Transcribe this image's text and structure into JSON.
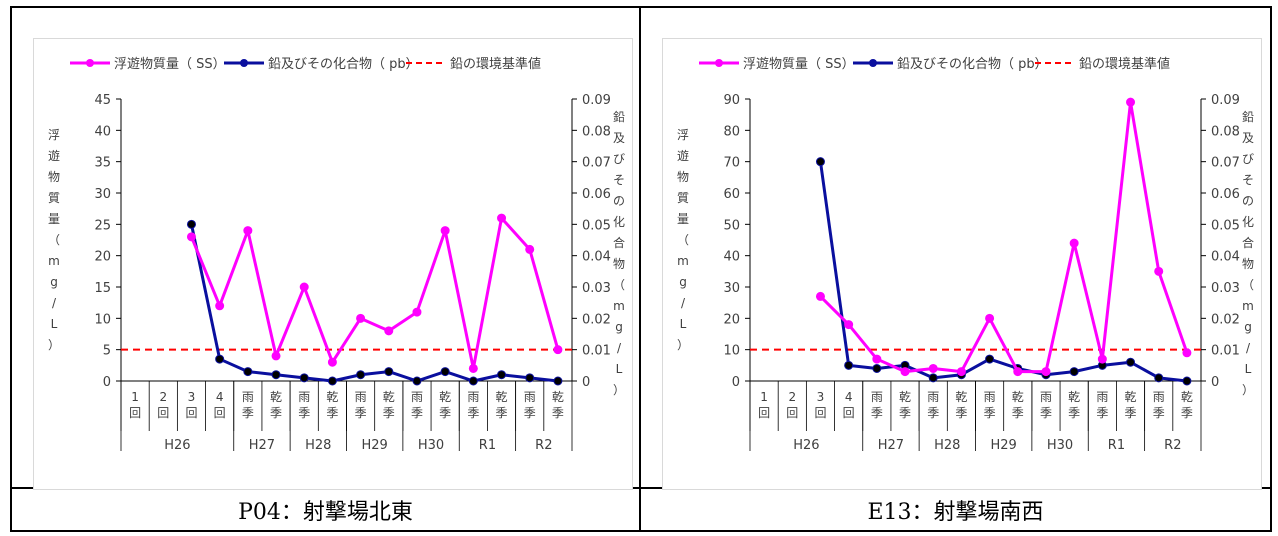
{
  "chart_data": [
    {
      "type": "line",
      "caption": "P04：射撃場北東",
      "legend": [
        "浮遊物質量（ SS）",
        "鉛及びその化合物（ pb）",
        "鉛の環境基準値"
      ],
      "left_axis_label": "浮遊物質量（mg/L）",
      "right_axis_label": "鉛及びその化合物（mg/L）",
      "left_ylim": [
        0,
        45
      ],
      "left_ticks": [
        "0",
        "5",
        "10",
        "15",
        "20",
        "25",
        "30",
        "35",
        "40",
        "45"
      ],
      "right_ylim": [
        0,
        0.09
      ],
      "right_ticks": [
        "0",
        "0.01",
        "0.02",
        "0.03",
        "0.04",
        "0.05",
        "0.06",
        "0.07",
        "0.08",
        "0.09"
      ],
      "categories": [
        "1回",
        "2回",
        "3回",
        "4回",
        "雨季",
        "乾季",
        "雨季",
        "乾季",
        "雨季",
        "乾季",
        "雨季",
        "乾季",
        "雨季",
        "乾季",
        "雨季",
        "乾季"
      ],
      "groups": [
        {
          "label": "H26",
          "count": 4
        },
        {
          "label": "H27",
          "count": 2
        },
        {
          "label": "H28",
          "count": 2
        },
        {
          "label": "H29",
          "count": 2
        },
        {
          "label": "H30",
          "count": 2
        },
        {
          "label": "R1",
          "count": 2
        },
        {
          "label": "R2",
          "count": 2
        }
      ],
      "series": [
        {
          "name": "浮遊物質量（ SS）",
          "color": "#ff00ff",
          "axis": "left",
          "values": [
            null,
            null,
            23,
            12,
            24,
            4,
            15,
            3,
            10,
            8,
            11,
            24,
            2,
            26,
            21,
            5
          ]
        },
        {
          "name": "鉛及びその化合物（ pb）",
          "color": "#0a0f9e",
          "axis": "right",
          "values": [
            null,
            null,
            0.05,
            0.007,
            0.003,
            0.002,
            0.001,
            0,
            0.002,
            0.003,
            0,
            0.003,
            0,
            0.002,
            0.001,
            0
          ]
        },
        {
          "name": "鉛の環境基準値",
          "color": "#ff0000",
          "axis": "right",
          "dashed": true,
          "constant": 0.01
        }
      ]
    },
    {
      "type": "line",
      "caption": "E13：射撃場南西",
      "legend": [
        "浮遊物質量（ SS）",
        "鉛及びその化合物（ pb）",
        "鉛の環境基準値"
      ],
      "left_axis_label": "浮遊物質量（mg/L）",
      "right_axis_label": "鉛及びその化合物（mg/L）",
      "left_ylim": [
        0,
        90
      ],
      "left_ticks": [
        "0",
        "10",
        "20",
        "30",
        "40",
        "50",
        "60",
        "70",
        "80",
        "90"
      ],
      "right_ylim": [
        0,
        0.09
      ],
      "right_ticks": [
        "0",
        "0.01",
        "0.02",
        "0.03",
        "0.04",
        "0.05",
        "0.06",
        "0.07",
        "0.08",
        "0.09"
      ],
      "categories": [
        "1回",
        "2回",
        "3回",
        "4回",
        "雨季",
        "乾季",
        "雨季",
        "乾季",
        "雨季",
        "乾季",
        "雨季",
        "乾季",
        "雨季",
        "乾季",
        "雨季",
        "乾季"
      ],
      "groups": [
        {
          "label": "H26",
          "count": 4
        },
        {
          "label": "H27",
          "count": 2
        },
        {
          "label": "H28",
          "count": 2
        },
        {
          "label": "H29",
          "count": 2
        },
        {
          "label": "H30",
          "count": 2
        },
        {
          "label": "R1",
          "count": 2
        },
        {
          "label": "R2",
          "count": 2
        }
      ],
      "series": [
        {
          "name": "浮遊物質量（ SS）",
          "color": "#ff00ff",
          "axis": "left",
          "values": [
            null,
            null,
            27,
            18,
            7,
            3,
            4,
            3,
            20,
            3,
            3,
            44,
            7,
            89,
            35,
            9
          ]
        },
        {
          "name": "鉛及びその化合物（ pb）",
          "color": "#0a0f9e",
          "axis": "right",
          "values": [
            null,
            null,
            0.07,
            0.005,
            0.004,
            0.005,
            0.001,
            0.002,
            0.007,
            0.004,
            0.002,
            0.003,
            0.005,
            0.006,
            0.001,
            0
          ]
        },
        {
          "name": "鉛の環境基準値",
          "color": "#ff0000",
          "axis": "right",
          "dashed": true,
          "constant": 0.01
        }
      ]
    }
  ]
}
